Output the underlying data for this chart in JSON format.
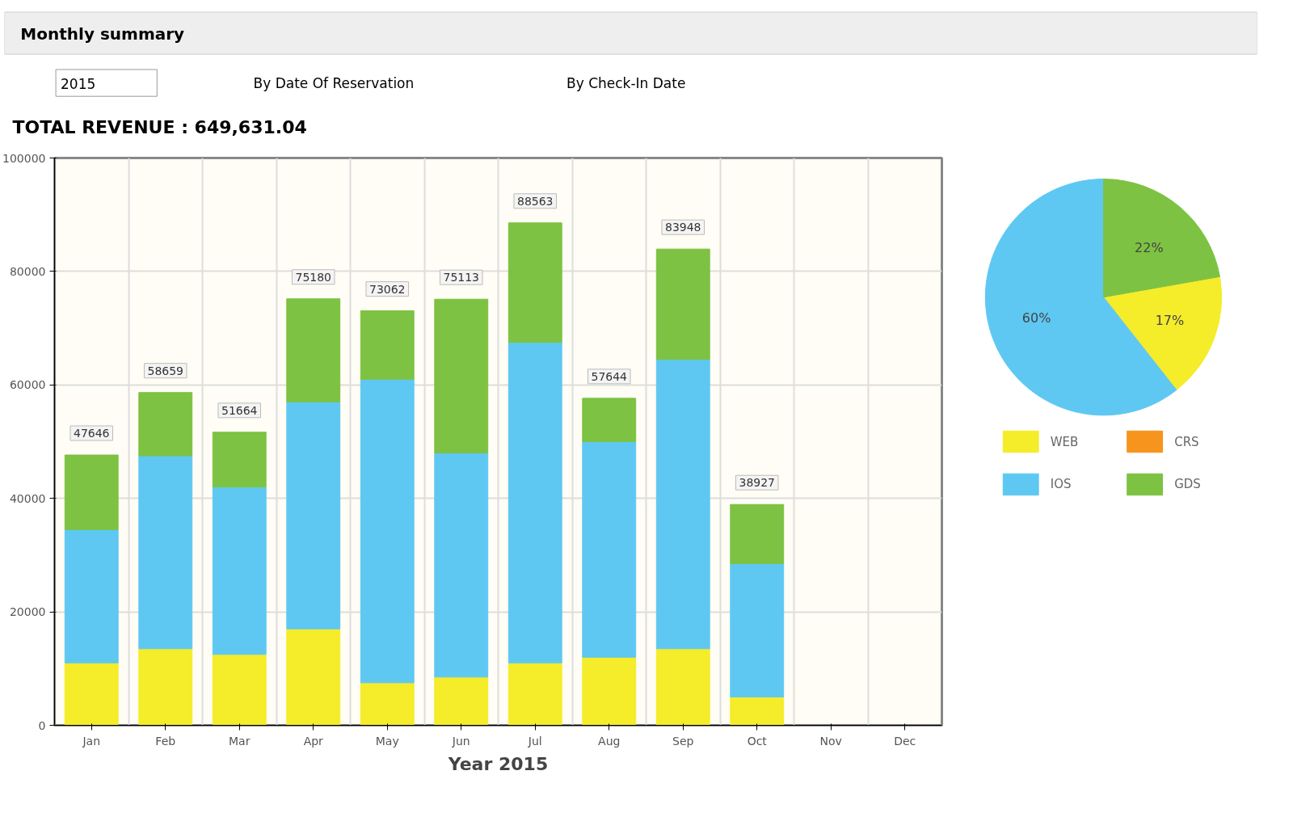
{
  "chart_data": [
    {
      "type": "bar",
      "title": "Monthly summary",
      "subtitle": "TOTAL REVENUE : 649,631.04",
      "xlabel": "Year 2015",
      "annotations": [
        "2015",
        "By Date Of Reservation",
        "By Check-In Date"
      ],
      "categories": [
        "Jan",
        "Feb",
        "Mar",
        "Apr",
        "May",
        "Jun",
        "Jul",
        "Aug",
        "Sep",
        "Oct",
        "Nov",
        "Dec"
      ],
      "stacked": true,
      "series": [
        {
          "color": "#f5ec2a",
          "values": [
            11000,
            13500,
            12500,
            17000,
            7500,
            8500,
            11000,
            12000,
            13500,
            5000,
            null,
            null
          ]
        },
        {
          "color": "#5ec8f2",
          "values": [
            23500,
            34000,
            29500,
            40000,
            53500,
            39500,
            56500,
            38000,
            51000,
            23500,
            null,
            null
          ]
        },
        {
          "color": "#7dc242",
          "values": [
            13146,
            11159,
            9664,
            18180,
            12062,
            27113,
            21063,
            7644,
            19448,
            10427,
            null,
            null
          ]
        }
      ],
      "totals": [
        "47646",
        "58659",
        "51664",
        "75180",
        "73062",
        "75113",
        "88563",
        "57644",
        "83948",
        "38927",
        null,
        null
      ],
      "ylim": [
        0,
        100000
      ],
      "yticks": [
        0,
        20000,
        40000,
        60000,
        80000,
        100000
      ],
      "grid": true
    },
    {
      "type": "pie",
      "categories": [
        "WEB",
        "CRS",
        "IOS",
        "GDS"
      ],
      "values": [
        17,
        0,
        60,
        22
      ],
      "colors": [
        "#f5ec2a",
        "#f7941d",
        "#5ec8f2",
        "#7dc242"
      ],
      "value_labels": [
        "17%",
        null,
        "60%",
        "22%"
      ],
      "legend": "bottom"
    }
  ]
}
